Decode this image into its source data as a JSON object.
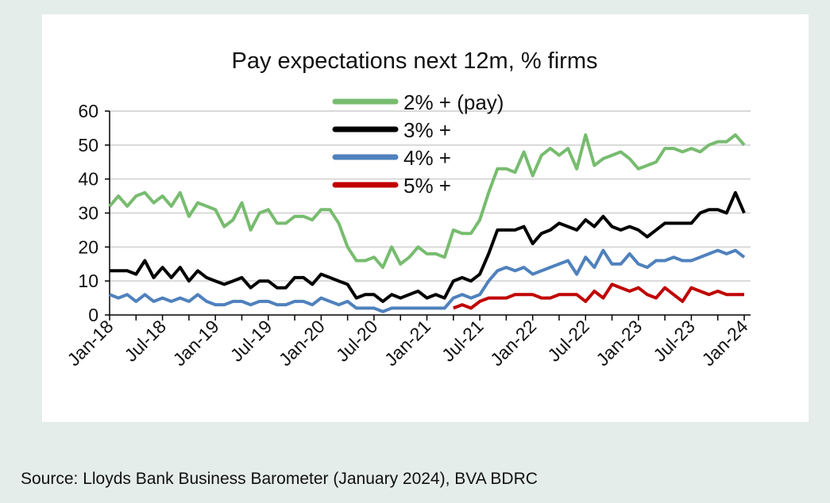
{
  "source": "Source: Lloyds Bank Business Barometer (January 2024), BVA BDRC",
  "chart_data": {
    "type": "line",
    "title": "Pay  expectations next 12m, % firms",
    "xlabel": "",
    "ylabel": "",
    "ylim": [
      0,
      60
    ],
    "yticks": [
      0,
      10,
      20,
      30,
      40,
      50,
      60
    ],
    "grid": true,
    "legend_position": "top-center",
    "x_start": "Jan-18",
    "x_end": "Jan-24",
    "x_frequency": "monthly",
    "xtick_labels": [
      "Jan-18",
      "Jul-18",
      "Jan-19",
      "Jul-19",
      "Jan-20",
      "Jul-20",
      "Jan-21",
      "Jul-21",
      "Jan-22",
      "Jul-22",
      "Jan-23",
      "Jul-23",
      "Jan-24"
    ],
    "series": [
      {
        "name": "2% + (pay)",
        "color": "#77bc6f",
        "values": [
          32,
          35,
          32,
          35,
          36,
          33,
          35,
          32,
          36,
          29,
          33,
          32,
          31,
          26,
          28,
          33,
          25,
          30,
          31,
          27,
          27,
          29,
          29,
          28,
          31,
          31,
          27,
          20,
          16,
          16,
          17,
          14,
          20,
          15,
          17,
          20,
          18,
          18,
          17,
          25,
          24,
          24,
          28,
          36,
          43,
          43,
          42,
          48,
          41,
          47,
          49,
          47,
          49,
          43,
          53,
          44,
          46,
          47,
          48,
          46,
          43,
          44,
          45,
          49,
          49,
          48,
          49,
          48,
          50,
          51,
          51,
          53,
          50
        ]
      },
      {
        "name": "3% +",
        "color": "#000000",
        "values": [
          13,
          13,
          13,
          12,
          16,
          11,
          14,
          11,
          14,
          10,
          13,
          11,
          10,
          9,
          10,
          11,
          8,
          10,
          10,
          8,
          8,
          11,
          11,
          9,
          12,
          11,
          10,
          9,
          5,
          6,
          6,
          4,
          6,
          5,
          6,
          7,
          5,
          6,
          5,
          10,
          11,
          10,
          12,
          18,
          25,
          25,
          25,
          26,
          21,
          24,
          25,
          27,
          26,
          25,
          28,
          26,
          29,
          26,
          25,
          26,
          25,
          23,
          25,
          27,
          27,
          27,
          27,
          30,
          31,
          31,
          30,
          36,
          30
        ]
      },
      {
        "name": "4% +",
        "color": "#4f81bd",
        "values": [
          6,
          5,
          6,
          4,
          6,
          4,
          5,
          4,
          5,
          4,
          6,
          4,
          3,
          3,
          4,
          4,
          3,
          4,
          4,
          3,
          3,
          4,
          4,
          3,
          5,
          4,
          3,
          4,
          2,
          2,
          2,
          1,
          2,
          2,
          2,
          2,
          2,
          2,
          2,
          5,
          6,
          5,
          6,
          10,
          13,
          14,
          13,
          14,
          12,
          13,
          14,
          15,
          16,
          12,
          17,
          14,
          19,
          15,
          15,
          18,
          15,
          14,
          16,
          16,
          17,
          16,
          16,
          17,
          18,
          19,
          18,
          19,
          17
        ]
      },
      {
        "name": "5% +",
        "color": "#c00000",
        "values": [
          null,
          null,
          null,
          null,
          null,
          null,
          null,
          null,
          null,
          null,
          null,
          null,
          null,
          null,
          null,
          null,
          null,
          null,
          null,
          null,
          null,
          null,
          null,
          null,
          null,
          null,
          null,
          null,
          null,
          null,
          null,
          null,
          null,
          null,
          null,
          null,
          null,
          null,
          null,
          2,
          3,
          2,
          4,
          5,
          5,
          5,
          6,
          6,
          6,
          5,
          5,
          6,
          6,
          6,
          4,
          7,
          5,
          9,
          8,
          7,
          8,
          6,
          5,
          8,
          6,
          4,
          8,
          7,
          6,
          7,
          6,
          6,
          6
        ]
      }
    ]
  }
}
